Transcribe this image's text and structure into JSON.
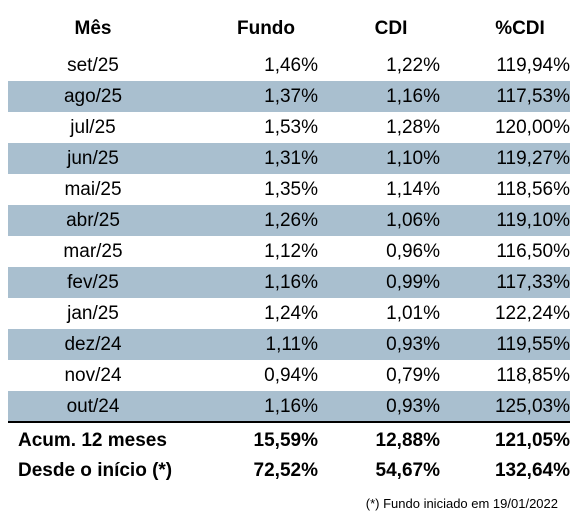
{
  "table": {
    "headers": [
      "Mês",
      "Fundo",
      "CDI",
      "%CDI"
    ],
    "rows": [
      [
        "set/25",
        "1,46%",
        "1,22%",
        "119,94%"
      ],
      [
        "ago/25",
        "1,37%",
        "1,16%",
        "117,53%"
      ],
      [
        "jul/25",
        "1,53%",
        "1,28%",
        "120,00%"
      ],
      [
        "jun/25",
        "1,31%",
        "1,10%",
        "119,27%"
      ],
      [
        "mai/25",
        "1,35%",
        "1,14%",
        "118,56%"
      ],
      [
        "abr/25",
        "1,26%",
        "1,06%",
        "119,10%"
      ],
      [
        "mar/25",
        "1,12%",
        "0,96%",
        "116,50%"
      ],
      [
        "fev/25",
        "1,16%",
        "0,99%",
        "117,33%"
      ],
      [
        "jan/25",
        "1,24%",
        "1,01%",
        "122,24%"
      ],
      [
        "dez/24",
        "1,11%",
        "0,93%",
        "119,55%"
      ],
      [
        "nov/24",
        "0,94%",
        "0,79%",
        "118,85%"
      ],
      [
        "out/24",
        "1,16%",
        "0,93%",
        "125,03%"
      ]
    ],
    "summary": [
      [
        "Acum. 12 meses",
        "15,59%",
        "12,88%",
        "121,05%"
      ],
      [
        "Desde o início (*)",
        "72,52%",
        "54,67%",
        "132,64%"
      ]
    ],
    "footnote": "(*) Fundo iniciado em 19/01/2022"
  },
  "colors": {
    "shaded_row": "#a9bfcf",
    "text": "#000000",
    "background": "#ffffff"
  }
}
